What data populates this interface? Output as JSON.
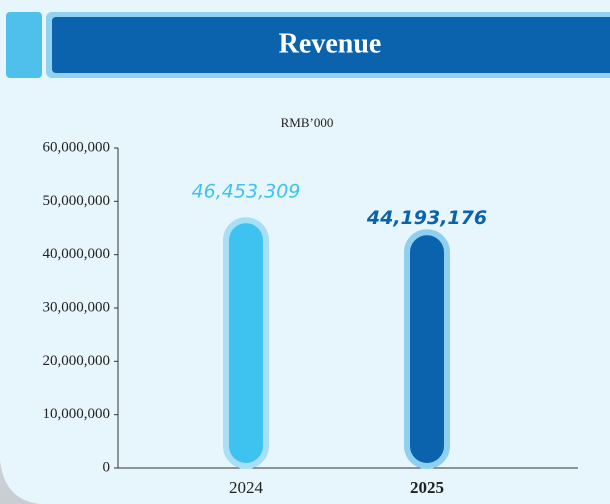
{
  "chart_data": {
    "type": "bar",
    "title": "Revenue",
    "subtitle": "RMB’000",
    "categories": [
      "2024",
      "2025"
    ],
    "values": [
      46453309,
      44193176
    ],
    "value_labels": [
      "46,453,309",
      "44,193,176"
    ],
    "colors": [
      "#3ec3f0",
      "#0b62ad"
    ],
    "ylim": [
      0,
      60000000
    ],
    "yticks": [
      0,
      {
        "value": 10000000,
        "label": "10,000,000"
      },
      {
        "value": 20000000,
        "label": "20,000,000"
      },
      {
        "value": 30000000,
        "label": "30,000,000"
      },
      {
        "value": 40000000,
        "label": "40,000,000"
      },
      {
        "value": 50000000,
        "label": "50,000,000"
      },
      {
        "value": 60000000,
        "label": "60,000,000"
      }
    ],
    "grid": false
  }
}
